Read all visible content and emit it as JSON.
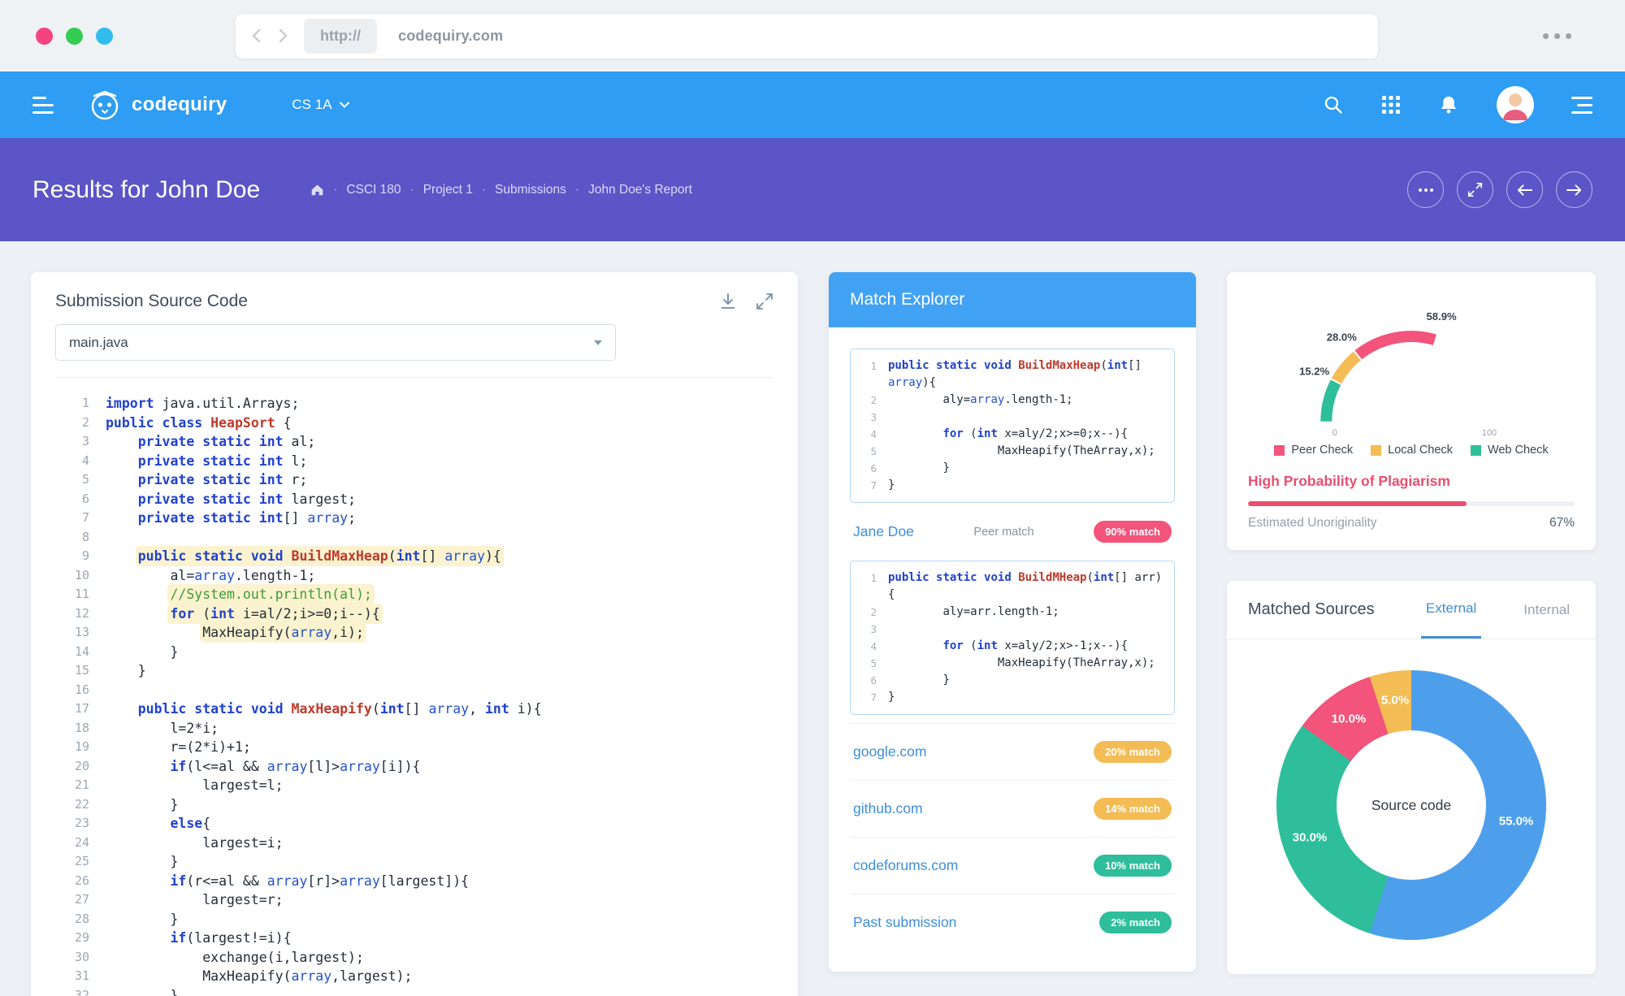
{
  "theme": {
    "header_blue": "#2E9DF3",
    "band_purple": "#5B55C8",
    "panel_blue": "#41A2F4",
    "link_blue": "#3E8EDE",
    "alert_red": "#E94F6F",
    "badge_pink": "#F2547B",
    "badge_yellow": "#F3BC55",
    "badge_green": "#2EBE9C",
    "donut_blue": "#4D9FEC"
  },
  "browser": {
    "url_protocol": "http://",
    "url_domain": "codequiry.com"
  },
  "header": {
    "brand": "codequiry",
    "course": "CS 1A"
  },
  "page_header": {
    "title": "Results for John Doe",
    "breadcrumb": [
      "CSCI 180",
      "Project 1",
      "Submissions",
      "John Doe's Report"
    ]
  },
  "source_card": {
    "title": "Submission Source Code",
    "file_select": "main.java",
    "highlighted_lines": [
      9,
      11,
      12,
      13
    ],
    "code_lines": [
      "import java.util.Arrays;",
      "public class HeapSort {",
      "    private static int al;",
      "    private static int l;",
      "    private static int r;",
      "    private static int largest;",
      "    private static int[] array;",
      "",
      "    public static void BuildMaxHeap(int[] array){",
      "        al=array.length-1;",
      "        //System.out.println(al);",
      "        for (int i=al/2;i>=0;i--){",
      "            MaxHeapify(array,i);",
      "        }",
      "    }",
      "",
      "    public static void MaxHeapify(int[] array, int i){",
      "        l=2*i;",
      "        r=(2*i)+1;",
      "        if(l<=al && array[l]>array[i]){",
      "            largest=l;",
      "        }",
      "        else{",
      "            largest=i;",
      "        }",
      "        if(r<=al && array[r]>array[largest]){",
      "            largest=r;",
      "        }",
      "        if(largest!=i){",
      "            exchange(i,largest);",
      "            MaxHeapify(array,largest);",
      "        }"
    ]
  },
  "match_explorer": {
    "title": "Match Explorer",
    "snippet_top": [
      "public static void BuildMaxHeap(int[] array){",
      "        aly=array.length-1;",
      "",
      "        for (int x=aly/2;x>=0;x--){",
      "                MaxHeapify(TheArray,x);",
      "        }",
      "}"
    ],
    "peer": {
      "name": "Jane Doe",
      "type": "Peer match",
      "badge": "90% match",
      "badge_color": "#F2547B"
    },
    "snippet_bottom": [
      "public static void BuildMHeap(int[] arr){",
      "        aly=arr.length-1;",
      "",
      "        for (int x=aly/2;x>-1;x--){",
      "                MaxHeapify(TheArray,x);",
      "        }",
      "}"
    ],
    "sources": [
      {
        "name": "google.com",
        "badge": "20% match",
        "badge_color": "#F3BC55"
      },
      {
        "name": "github.com",
        "badge": "14% match",
        "badge_color": "#F3BC55"
      },
      {
        "name": "codeforums.com",
        "badge": "10% match",
        "badge_color": "#2EBE9C"
      },
      {
        "name": "Past submission",
        "badge": "2% match",
        "badge_color": "#2EBE9C"
      }
    ]
  },
  "overview_card": {
    "verdict": "High Probability of Plagiarism",
    "unoriginality_label": "Estimated Unoriginality",
    "unoriginality_value": "67%"
  },
  "matched_sources_card": {
    "title": "Matched Sources",
    "tabs": [
      "External",
      "Internal"
    ],
    "active_tab": "External"
  },
  "chart_data": [
    {
      "type": "gauge",
      "title": "Plagiarism check scores",
      "range": [
        0,
        100
      ],
      "axis_ticks": [
        "0",
        "100"
      ],
      "segments": [
        {
          "name": "Web Check",
          "from": 0,
          "to": 15.2,
          "label": "15.2%",
          "color": "#2EBE9C"
        },
        {
          "name": "Local Check",
          "from": 15.2,
          "to": 28.0,
          "label": "28.0%",
          "color": "#F3BC55"
        },
        {
          "name": "Peer Check",
          "from": 28.0,
          "to": 58.9,
          "label": "58.9%",
          "color": "#F2547B"
        }
      ],
      "legend": [
        {
          "label": "Peer Check",
          "color": "#F2547B"
        },
        {
          "label": "Local Check",
          "color": "#F3BC55"
        },
        {
          "label": "Web Check",
          "color": "#2EBE9C"
        }
      ],
      "legend_position": "bottom"
    },
    {
      "type": "pie",
      "donut": true,
      "title": "Matched sources breakdown",
      "center_label": "Source code",
      "start_angle_deg": 0,
      "direction": "clockwise",
      "slices": [
        {
          "label": "55.0%",
          "value": 55.0,
          "color": "#4D9FEC"
        },
        {
          "label": "30.0%",
          "value": 30.0,
          "color": "#2EBE9C"
        },
        {
          "label": "10.0%",
          "value": 10.0,
          "color": "#F2547B"
        },
        {
          "label": "5.0%",
          "value": 5.0,
          "color": "#F3BC55"
        }
      ]
    }
  ]
}
